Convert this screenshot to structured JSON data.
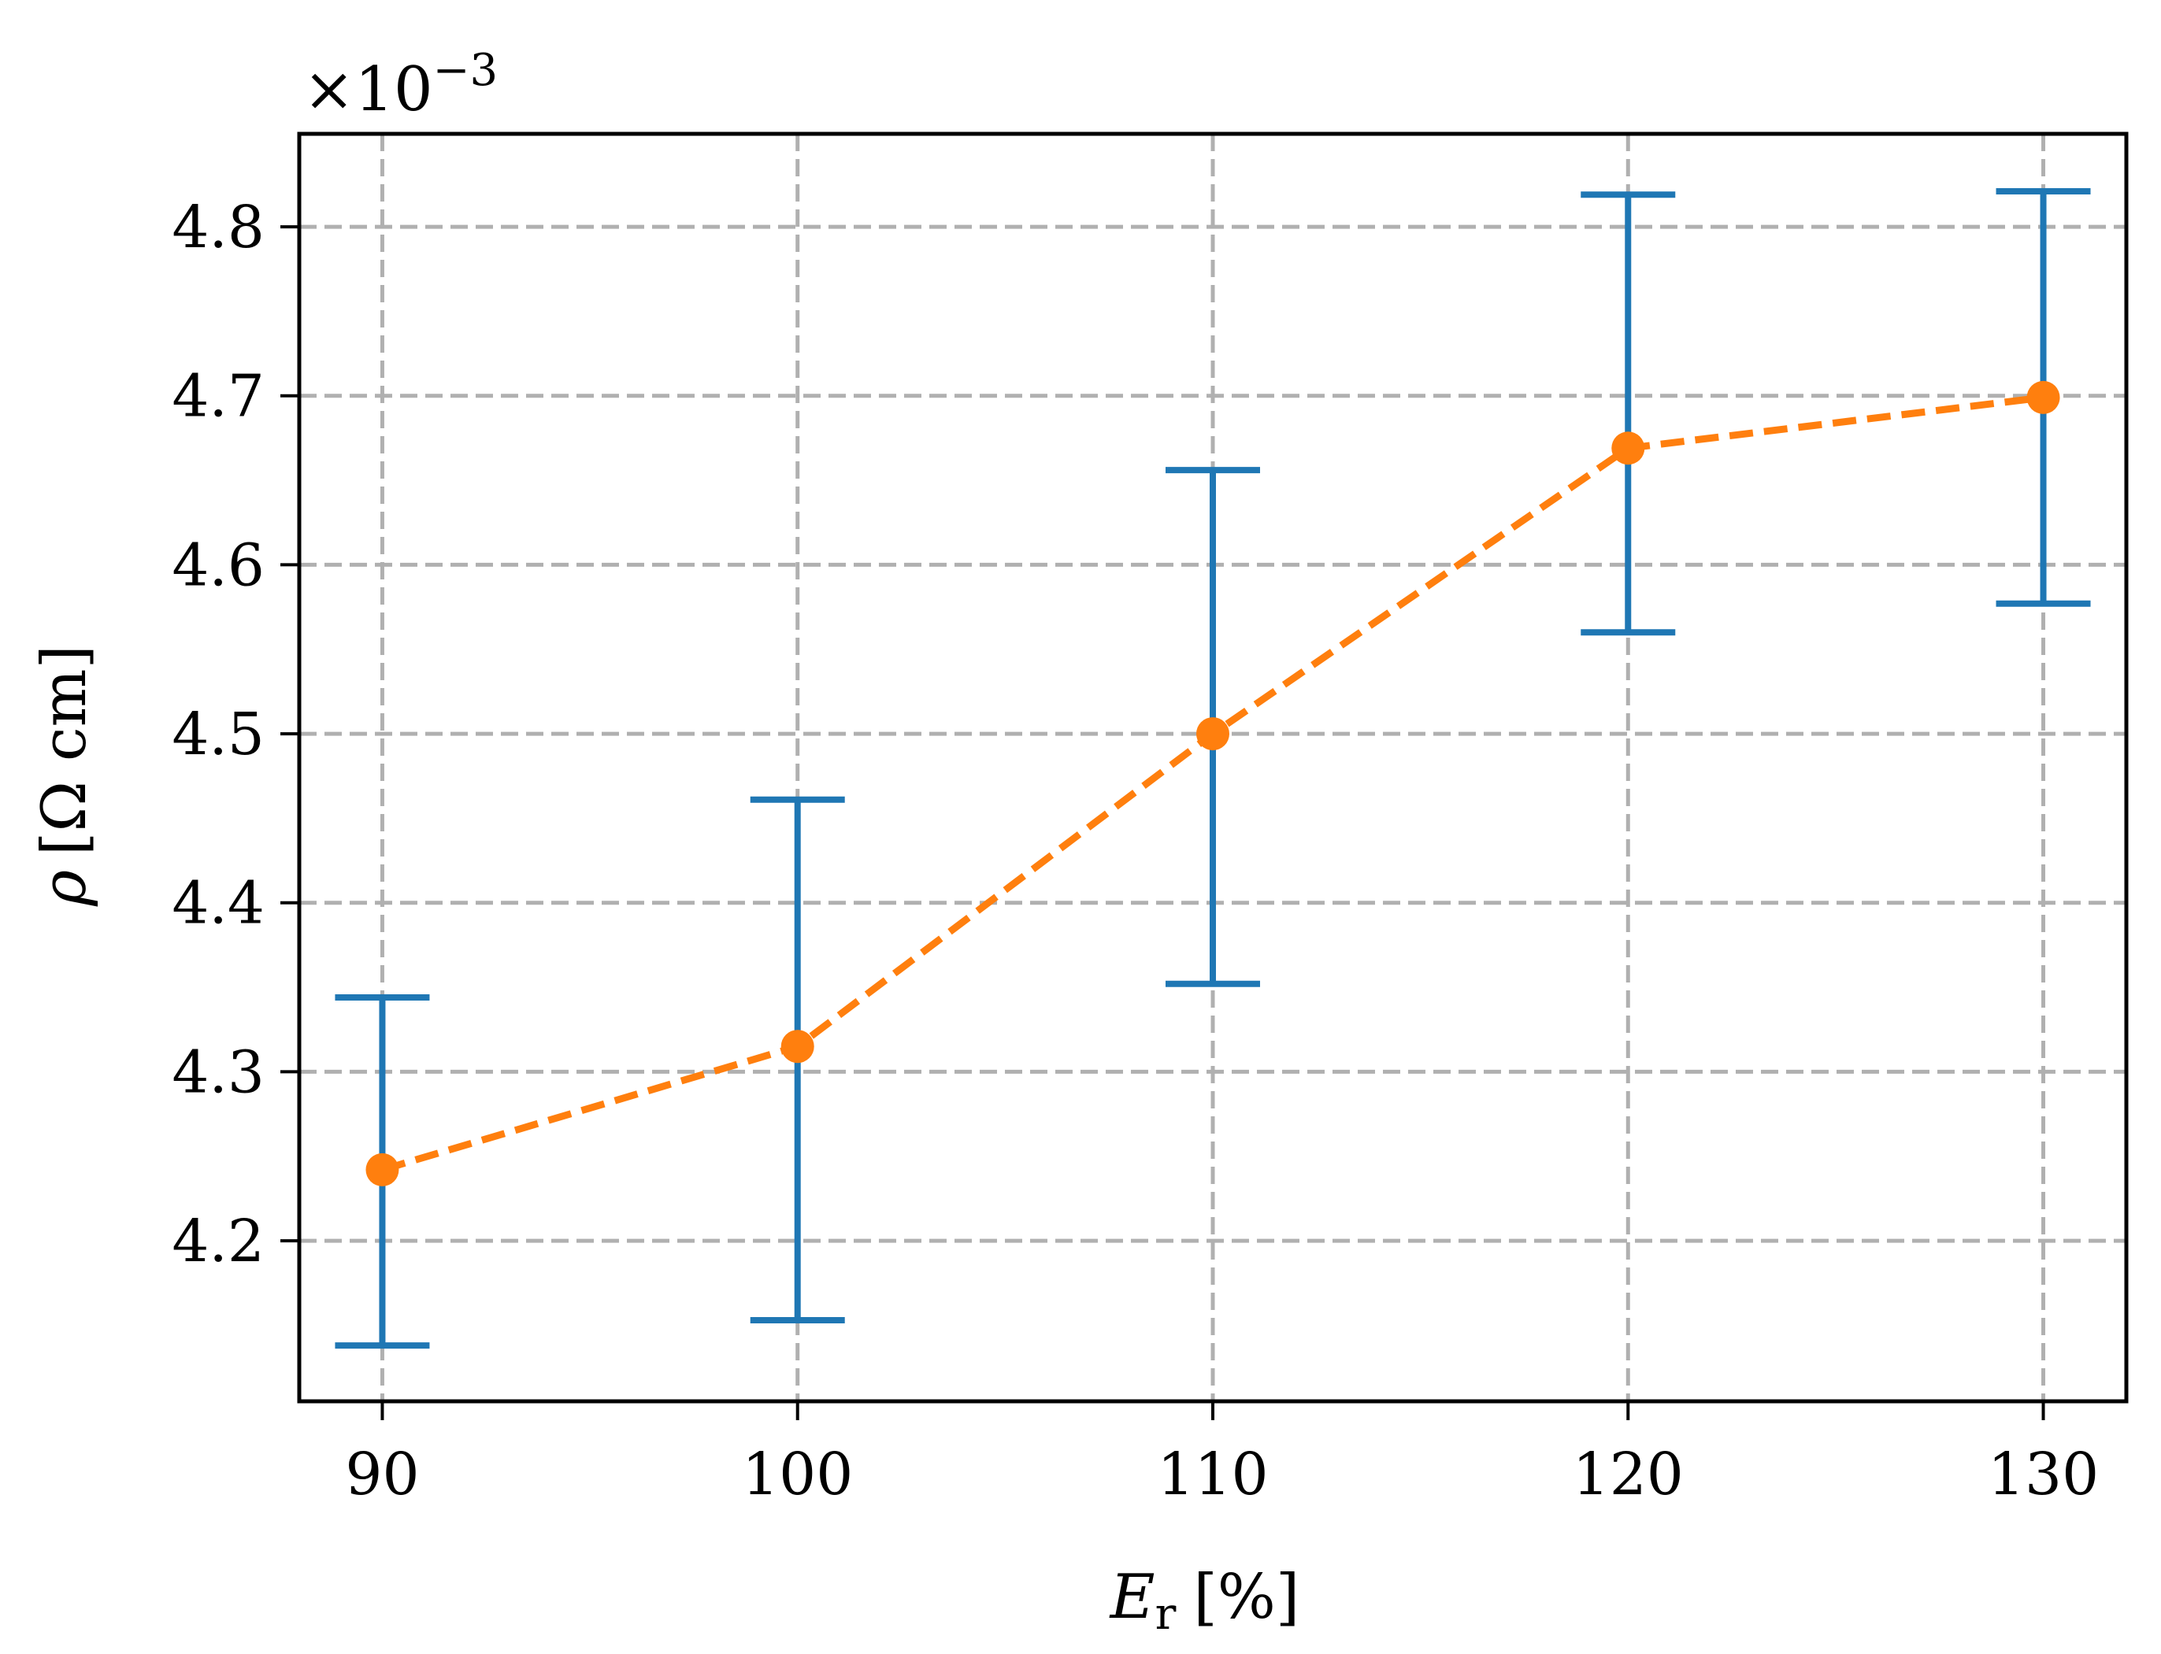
{
  "chart_data": {
    "type": "scatter",
    "title": "",
    "xlabel": {
      "main": "E",
      "sub": "r",
      "unit": "[%]"
    },
    "ylabel": {
      "main": "ρ",
      "unit": "[Ω cm]"
    },
    "offset_text": {
      "base": "×10",
      "exponent": "−3"
    },
    "xlim": [
      88,
      132
    ],
    "ylim": [
      4.105,
      4.855
    ],
    "x_ticks": [
      90,
      100,
      110,
      120,
      130
    ],
    "x_tick_labels": [
      "90",
      "100",
      "110",
      "120",
      "130"
    ],
    "y_ticks": [
      4.2,
      4.3,
      4.4,
      4.5,
      4.6,
      4.7,
      4.8
    ],
    "y_tick_labels": [
      "4.2",
      "4.3",
      "4.4",
      "4.5",
      "4.6",
      "4.7",
      "4.8"
    ],
    "grid": true,
    "series": [
      {
        "style": "dashed line with markers",
        "color": "#ff7f0e",
        "x": [
          90,
          100,
          110,
          120,
          130
        ],
        "y": [
          4.242,
          4.315,
          4.5,
          4.669,
          4.699
        ]
      },
      {
        "style": "error bars",
        "color": "#1f77b4",
        "x": [
          90,
          100,
          110,
          120,
          130
        ],
        "lower": [
          4.138,
          4.153,
          4.352,
          4.56,
          4.577
        ],
        "upper": [
          4.344,
          4.461,
          4.656,
          4.819,
          4.821
        ]
      }
    ],
    "colors": {
      "grid": "#b0b0b0",
      "axes": "#000000"
    }
  }
}
